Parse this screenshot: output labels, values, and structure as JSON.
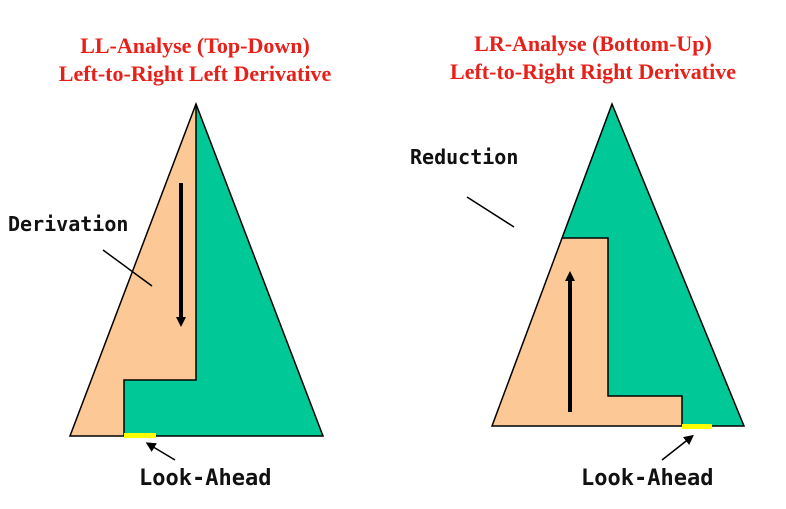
{
  "ll": {
    "title_line1": "LL-Analyse (Top-Down)",
    "title_line2": "Left-to-Right Left Derivative",
    "action_label": "Derivation",
    "lookahead_label": "Look-Ahead"
  },
  "lr": {
    "title_line1": "LR-Analyse (Bottom-Up)",
    "title_line2": "Left-to-Right Right Derivative",
    "action_label": "Reduction",
    "lookahead_label": "Look-Ahead"
  },
  "colors": {
    "title": "#e8201a",
    "parsed_region": "#fcc896",
    "unparsed_region": "#00c896",
    "lookahead": "#ffff00",
    "outline": "#000000"
  }
}
